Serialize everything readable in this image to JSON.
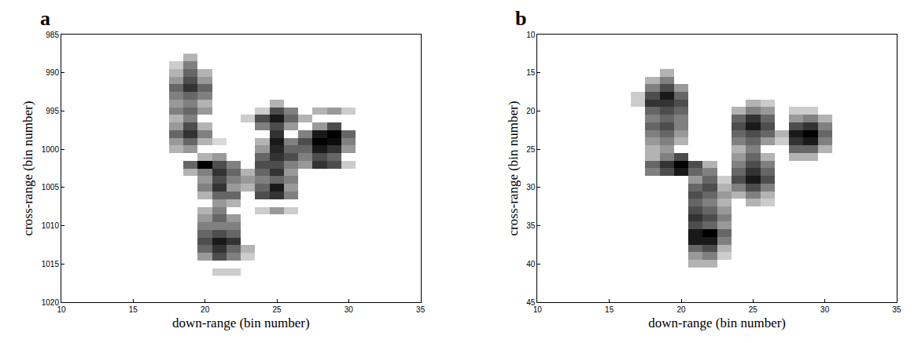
{
  "chart_data": [
    {
      "type": "heatmap",
      "title": "a",
      "x_label": "down-range (bin number)",
      "y_label": "cross-range (bin number)",
      "xlim": [
        10,
        35
      ],
      "ylim": [
        985,
        1020
      ],
      "xticks": [
        10,
        15,
        20,
        25,
        30,
        35
      ],
      "yticks": [
        985,
        990,
        995,
        1000,
        1005,
        1010,
        1015,
        1020
      ],
      "zlim": [
        0,
        1
      ],
      "cells": [
        [
          18,
          989,
          0.2
        ],
        [
          18,
          990,
          0.3
        ],
        [
          18,
          991,
          0.4
        ],
        [
          18,
          992,
          0.6
        ],
        [
          18,
          993,
          0.5
        ],
        [
          18,
          994,
          0.4
        ],
        [
          18,
          995,
          0.5
        ],
        [
          18,
          996,
          0.3
        ],
        [
          18,
          997,
          0.4
        ],
        [
          18,
          998,
          0.6
        ],
        [
          18,
          999,
          0.4
        ],
        [
          18,
          1000,
          0.3
        ],
        [
          19,
          988,
          0.3
        ],
        [
          19,
          989,
          0.5
        ],
        [
          19,
          990,
          0.6
        ],
        [
          19,
          991,
          0.7
        ],
        [
          19,
          992,
          0.8
        ],
        [
          19,
          993,
          0.6
        ],
        [
          19,
          994,
          0.5
        ],
        [
          19,
          995,
          0.6
        ],
        [
          19,
          996,
          0.5
        ],
        [
          19,
          997,
          0.7
        ],
        [
          19,
          998,
          0.8
        ],
        [
          19,
          999,
          0.6
        ],
        [
          19,
          1000,
          0.4
        ],
        [
          20,
          990,
          0.3
        ],
        [
          20,
          991,
          0.4
        ],
        [
          20,
          992,
          0.6
        ],
        [
          20,
          993,
          0.5
        ],
        [
          20,
          994,
          0.3
        ],
        [
          20,
          995,
          0.4
        ],
        [
          20,
          997,
          0.3
        ],
        [
          20,
          998,
          0.5
        ],
        [
          20,
          999,
          0.3
        ],
        [
          21,
          999,
          0.15
        ],
        [
          20,
          1001,
          0.3
        ],
        [
          21,
          1001,
          0.4
        ],
        [
          19,
          1002,
          0.6
        ],
        [
          20,
          1002,
          1.0
        ],
        [
          21,
          1002,
          0.7
        ],
        [
          22,
          1002,
          0.5
        ],
        [
          19,
          1003,
          0.3
        ],
        [
          20,
          1003,
          0.5
        ],
        [
          21,
          1003,
          0.8
        ],
        [
          22,
          1003,
          0.6
        ],
        [
          20,
          1004,
          0.4
        ],
        [
          20,
          1005,
          0.5
        ],
        [
          20,
          1006,
          0.3
        ],
        [
          20,
          1008,
          0.3
        ],
        [
          20,
          1009,
          0.4
        ],
        [
          20,
          1010,
          0.5
        ],
        [
          20,
          1011,
          0.6
        ],
        [
          20,
          1012,
          0.7
        ],
        [
          20,
          1013,
          0.6
        ],
        [
          20,
          1014,
          0.4
        ],
        [
          21,
          1004,
          0.7
        ],
        [
          21,
          1005,
          0.8
        ],
        [
          21,
          1006,
          0.6
        ],
        [
          21,
          1007,
          0.4
        ],
        [
          21,
          1008,
          0.5
        ],
        [
          21,
          1009,
          0.6
        ],
        [
          21,
          1010,
          0.5
        ],
        [
          21,
          1011,
          0.7
        ],
        [
          21,
          1012,
          0.9
        ],
        [
          21,
          1013,
          0.8
        ],
        [
          21,
          1014,
          0.7
        ],
        [
          21,
          1016,
          0.2
        ],
        [
          22,
          1004,
          0.5
        ],
        [
          22,
          1005,
          0.4
        ],
        [
          22,
          1006,
          0.6
        ],
        [
          22,
          1007,
          0.3
        ],
        [
          22,
          1009,
          0.4
        ],
        [
          22,
          1010,
          0.5
        ],
        [
          22,
          1011,
          0.6
        ],
        [
          22,
          1012,
          0.8
        ],
        [
          22,
          1013,
          0.6
        ],
        [
          22,
          1014,
          0.5
        ],
        [
          22,
          1016,
          0.2
        ],
        [
          23,
          1013,
          0.3
        ],
        [
          23,
          1014,
          0.2
        ],
        [
          23,
          996,
          0.2
        ],
        [
          23,
          1003,
          0.3
        ],
        [
          23,
          1004,
          0.4
        ],
        [
          23,
          1005,
          0.3
        ],
        [
          24,
          995,
          0.2
        ],
        [
          24,
          996,
          0.7
        ],
        [
          24,
          997,
          0.5
        ],
        [
          24,
          999,
          0.3
        ],
        [
          24,
          1000,
          0.4
        ],
        [
          24,
          1001,
          0.6
        ],
        [
          24,
          1002,
          0.7
        ],
        [
          24,
          1003,
          0.6
        ],
        [
          24,
          1004,
          0.5
        ],
        [
          24,
          1005,
          0.6
        ],
        [
          24,
          1006,
          0.7
        ],
        [
          24,
          1008,
          0.2
        ],
        [
          25,
          994,
          0.3
        ],
        [
          25,
          995,
          0.7
        ],
        [
          25,
          996,
          0.9
        ],
        [
          25,
          997,
          0.7
        ],
        [
          25,
          998,
          0.8
        ],
        [
          25,
          999,
          0.9
        ],
        [
          25,
          1000,
          0.85
        ],
        [
          25,
          1001,
          0.8
        ],
        [
          25,
          1002,
          0.7
        ],
        [
          25,
          1003,
          0.8
        ],
        [
          25,
          1004,
          0.6
        ],
        [
          25,
          1005,
          0.9
        ],
        [
          25,
          1006,
          0.8
        ],
        [
          25,
          1008,
          0.4
        ],
        [
          26,
          995,
          0.5
        ],
        [
          26,
          996,
          0.6
        ],
        [
          26,
          997,
          0.4
        ],
        [
          26,
          999,
          0.5
        ],
        [
          26,
          1000,
          0.6
        ],
        [
          26,
          1001,
          0.7
        ],
        [
          26,
          1002,
          0.5
        ],
        [
          26,
          1003,
          0.4
        ],
        [
          26,
          1004,
          0.5
        ],
        [
          26,
          1005,
          0.4
        ],
        [
          26,
          1006,
          0.5
        ],
        [
          26,
          1008,
          0.2
        ],
        [
          27,
          996,
          0.3
        ],
        [
          27,
          998,
          0.5
        ],
        [
          27,
          999,
          0.7
        ],
        [
          27,
          1000,
          0.6
        ],
        [
          27,
          1001,
          0.5
        ],
        [
          27,
          1002,
          0.4
        ],
        [
          28,
          995,
          0.3
        ],
        [
          28,
          997,
          0.4
        ],
        [
          28,
          998,
          0.9
        ],
        [
          28,
          999,
          1.0
        ],
        [
          28,
          1000,
          0.9
        ],
        [
          28,
          1001,
          0.7
        ],
        [
          28,
          1002,
          0.8
        ],
        [
          29,
          995,
          0.4
        ],
        [
          29,
          997,
          0.7
        ],
        [
          29,
          998,
          1.0
        ],
        [
          29,
          999,
          0.95
        ],
        [
          29,
          1000,
          0.8
        ],
        [
          29,
          1001,
          0.6
        ],
        [
          29,
          1002,
          0.7
        ],
        [
          30,
          995,
          0.2
        ],
        [
          30,
          998,
          0.6
        ],
        [
          30,
          999,
          0.5
        ],
        [
          30,
          1000,
          0.4
        ],
        [
          30,
          1002,
          0.2
        ]
      ]
    },
    {
      "type": "heatmap",
      "title": "b",
      "x_label": "down-range (bin number)",
      "y_label": "cross-range (bin number)",
      "xlim": [
        10,
        35
      ],
      "ylim": [
        10,
        45
      ],
      "xticks": [
        10,
        15,
        20,
        25,
        30,
        35
      ],
      "yticks": [
        10,
        15,
        20,
        25,
        30,
        35,
        40,
        45
      ],
      "zlim": [
        0,
        1
      ],
      "cells": [
        [
          17,
          18,
          0.2
        ],
        [
          17,
          19,
          0.2
        ],
        [
          18,
          16,
          0.3
        ],
        [
          18,
          17,
          0.5
        ],
        [
          18,
          18,
          0.7
        ],
        [
          18,
          19,
          0.8
        ],
        [
          18,
          20,
          0.6
        ],
        [
          18,
          21,
          0.5
        ],
        [
          18,
          22,
          0.6
        ],
        [
          18,
          23,
          0.5
        ],
        [
          18,
          24,
          0.4
        ],
        [
          18,
          25,
          0.3
        ],
        [
          18,
          26,
          0.3
        ],
        [
          18,
          27,
          0.6
        ],
        [
          18,
          28,
          0.5
        ],
        [
          19,
          15,
          0.3
        ],
        [
          19,
          16,
          0.5
        ],
        [
          19,
          17,
          0.7
        ],
        [
          19,
          18,
          0.9
        ],
        [
          19,
          19,
          0.8
        ],
        [
          19,
          20,
          0.7
        ],
        [
          19,
          21,
          0.6
        ],
        [
          19,
          22,
          0.7
        ],
        [
          19,
          23,
          0.6
        ],
        [
          19,
          24,
          0.5
        ],
        [
          19,
          25,
          0.4
        ],
        [
          19,
          26,
          0.5
        ],
        [
          19,
          27,
          0.8
        ],
        [
          19,
          28,
          0.7
        ],
        [
          20,
          17,
          0.4
        ],
        [
          20,
          18,
          0.6
        ],
        [
          20,
          19,
          0.7
        ],
        [
          20,
          20,
          0.6
        ],
        [
          20,
          21,
          0.5
        ],
        [
          20,
          22,
          0.5
        ],
        [
          20,
          23,
          0.4
        ],
        [
          20,
          24,
          0.3
        ],
        [
          20,
          26,
          0.7
        ],
        [
          20,
          27,
          1.0
        ],
        [
          20,
          28,
          0.9
        ],
        [
          21,
          27,
          0.7
        ],
        [
          21,
          28,
          0.6
        ],
        [
          21,
          29,
          0.4
        ],
        [
          21,
          30,
          0.6
        ],
        [
          21,
          31,
          0.7
        ],
        [
          21,
          32,
          0.6
        ],
        [
          21,
          33,
          0.7
        ],
        [
          21,
          34,
          0.8
        ],
        [
          21,
          35,
          0.7
        ],
        [
          21,
          36,
          0.9
        ],
        [
          21,
          37,
          0.9
        ],
        [
          21,
          38,
          0.6
        ],
        [
          21,
          39,
          0.4
        ],
        [
          21,
          40,
          0.3
        ],
        [
          22,
          27,
          0.3
        ],
        [
          22,
          28,
          0.5
        ],
        [
          22,
          29,
          0.6
        ],
        [
          22,
          30,
          0.7
        ],
        [
          22,
          31,
          0.6
        ],
        [
          22,
          32,
          0.5
        ],
        [
          22,
          33,
          0.6
        ],
        [
          22,
          34,
          0.7
        ],
        [
          22,
          35,
          0.6
        ],
        [
          22,
          36,
          1.0
        ],
        [
          22,
          37,
          0.9
        ],
        [
          22,
          38,
          0.7
        ],
        [
          22,
          39,
          0.5
        ],
        [
          22,
          40,
          0.3
        ],
        [
          23,
          29,
          0.2
        ],
        [
          23,
          30,
          0.3
        ],
        [
          23,
          31,
          0.4
        ],
        [
          23,
          32,
          0.3
        ],
        [
          23,
          33,
          0.4
        ],
        [
          23,
          34,
          0.5
        ],
        [
          23,
          35,
          0.4
        ],
        [
          23,
          36,
          0.6
        ],
        [
          23,
          37,
          0.5
        ],
        [
          23,
          38,
          0.3
        ],
        [
          23,
          39,
          0.2
        ],
        [
          24,
          20,
          0.3
        ],
        [
          24,
          21,
          0.6
        ],
        [
          24,
          22,
          0.7
        ],
        [
          24,
          23,
          0.6
        ],
        [
          24,
          24,
          0.5
        ],
        [
          24,
          25,
          0.3
        ],
        [
          24,
          26,
          0.4
        ],
        [
          24,
          27,
          0.5
        ],
        [
          24,
          28,
          0.6
        ],
        [
          24,
          29,
          0.7
        ],
        [
          24,
          30,
          0.5
        ],
        [
          24,
          31,
          0.3
        ],
        [
          25,
          19,
          0.3
        ],
        [
          25,
          20,
          0.5
        ],
        [
          25,
          21,
          0.8
        ],
        [
          25,
          22,
          0.9
        ],
        [
          25,
          23,
          0.7
        ],
        [
          25,
          24,
          0.6
        ],
        [
          25,
          25,
          0.5
        ],
        [
          25,
          26,
          0.6
        ],
        [
          25,
          27,
          0.7
        ],
        [
          25,
          28,
          0.8
        ],
        [
          25,
          29,
          0.9
        ],
        [
          25,
          30,
          0.7
        ],
        [
          25,
          31,
          0.5
        ],
        [
          25,
          32,
          0.3
        ],
        [
          26,
          19,
          0.2
        ],
        [
          26,
          20,
          0.4
        ],
        [
          26,
          21,
          0.6
        ],
        [
          26,
          22,
          0.7
        ],
        [
          26,
          23,
          0.6
        ],
        [
          26,
          24,
          0.4
        ],
        [
          26,
          26,
          0.3
        ],
        [
          26,
          27,
          0.5
        ],
        [
          26,
          28,
          0.6
        ],
        [
          26,
          29,
          0.7
        ],
        [
          26,
          30,
          0.5
        ],
        [
          26,
          31,
          0.3
        ],
        [
          26,
          32,
          0.2
        ],
        [
          27,
          23,
          0.3
        ],
        [
          27,
          24,
          0.2
        ],
        [
          28,
          20,
          0.2
        ],
        [
          28,
          21,
          0.4
        ],
        [
          28,
          22,
          0.7
        ],
        [
          28,
          23,
          0.9
        ],
        [
          28,
          24,
          0.8
        ],
        [
          28,
          25,
          0.6
        ],
        [
          28,
          26,
          0.3
        ],
        [
          29,
          20,
          0.2
        ],
        [
          29,
          21,
          0.5
        ],
        [
          29,
          22,
          0.8
        ],
        [
          29,
          23,
          1.0
        ],
        [
          29,
          24,
          0.9
        ],
        [
          29,
          25,
          0.6
        ],
        [
          29,
          26,
          0.3
        ],
        [
          30,
          21,
          0.3
        ],
        [
          30,
          22,
          0.5
        ],
        [
          30,
          23,
          0.6
        ],
        [
          30,
          24,
          0.5
        ],
        [
          30,
          25,
          0.3
        ]
      ]
    }
  ]
}
